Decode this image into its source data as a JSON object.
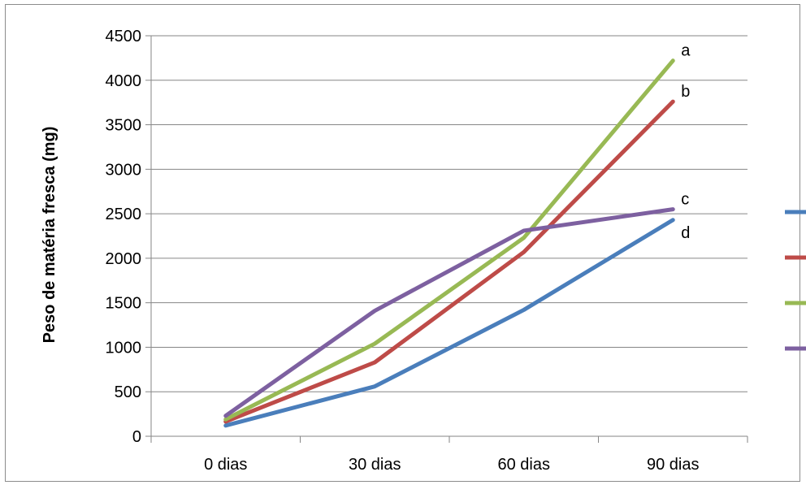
{
  "chart_data": {
    "type": "line",
    "categories": [
      "0 dias",
      "30 dias",
      "60 dias",
      "90 dias"
    ],
    "ylabel": "Peso de matéria fresca (mg)",
    "ylim": [
      0,
      4500
    ],
    "yticks": [
      0,
      500,
      1000,
      1500,
      2000,
      2500,
      3000,
      3500,
      4000,
      4500
    ],
    "grid": true,
    "legend_position": "right",
    "series": [
      {
        "color": "#4a7ebb",
        "values": [
          120,
          560,
          1420,
          2430
        ],
        "end_label": "d"
      },
      {
        "color": "#be4b48",
        "values": [
          165,
          830,
          2070,
          3760
        ],
        "end_label": "b"
      },
      {
        "color": "#98b954",
        "values": [
          190,
          1040,
          2230,
          4220
        ],
        "end_label": "a"
      },
      {
        "color": "#7d60a0",
        "values": [
          230,
          1410,
          2310,
          2550
        ],
        "end_label": "c"
      }
    ]
  }
}
